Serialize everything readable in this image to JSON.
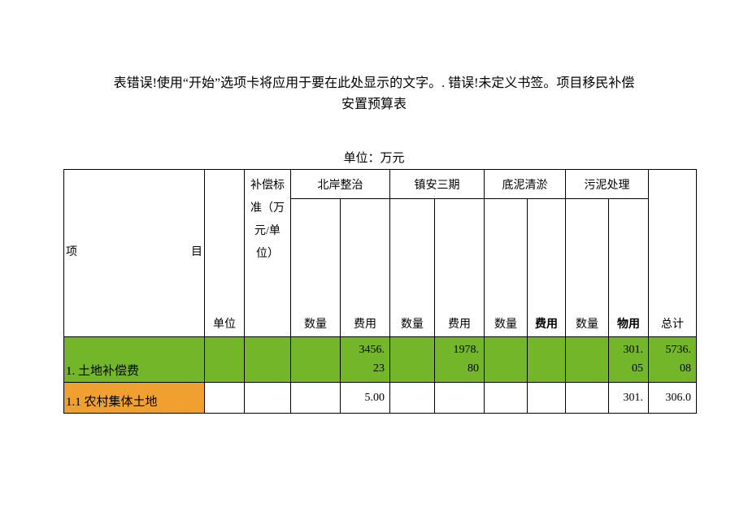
{
  "title_line1": "表错误!使用“开始”选项卡将应用于要在此处显示的文字。. 错误!未定义书签。项目移民补偿",
  "title_line2": "安置预算表",
  "unit_label": "单位：万元",
  "headers": {
    "project_left": "项",
    "project_right": "目",
    "unit": "单位",
    "std": "补偿标准（万元/单位）",
    "groups": [
      "北岸整治",
      "镇安三期",
      "底泥清淤",
      "污泥处理"
    ],
    "qty": "数量",
    "fee": "费用",
    "fee_bold": "费用",
    "fee_wu": "物用",
    "total": "总计"
  },
  "rows": [
    {
      "label": "1. 土地补偿费",
      "cells": {
        "fee1": "3456.\n23",
        "fee2": "1978.\n80",
        "fee4": "301.\n05",
        "total": "5736.\n08"
      }
    },
    {
      "label": "1.1 农村集体土地",
      "cells": {
        "fee1_plain": "5.00",
        "fee4_plain": "301.",
        "total_plain": "306.0"
      }
    }
  ],
  "colors": {
    "green": "#74b62a",
    "orange": "#f0a030",
    "border": "#000000",
    "bg": "#ffffff",
    "text": "#000000"
  }
}
